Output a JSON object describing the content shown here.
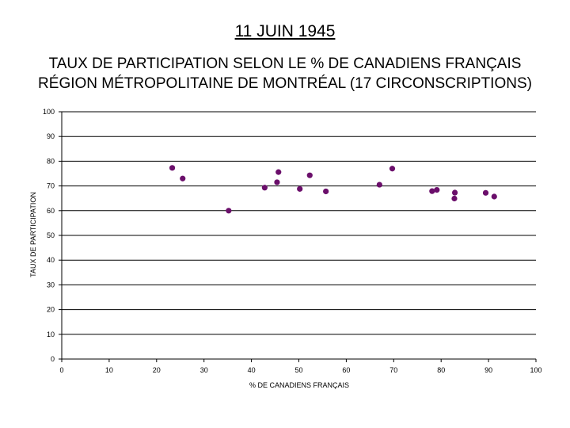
{
  "header": {
    "title": "11 JUIN 1945",
    "subtitle_line1": "TAUX DE PARTICIPATION SELON LE % DE CANADIENS FRANÇAIS",
    "subtitle_line2": "RÉGION MÉTROPOLITAINE DE MONTRÉAL (17 CIRCONSCRIPTIONS)"
  },
  "chart_data": {
    "type": "scatter",
    "title": "11 JUIN 1945",
    "subtitle": "TAUX DE PARTICIPATION SELON LE % DE CANADIENS FRANÇAIS RÉGION MÉTROPOLITAINE DE MONTRÉAL (17 CIRCONSCRIPTIONS)",
    "xlabel": "% DE CANADIENS FRANÇAIS",
    "ylabel": "TAUX DE PARTICIPATION",
    "xlim": [
      0,
      100
    ],
    "ylim": [
      0,
      100
    ],
    "x_ticks": [
      0,
      10,
      20,
      30,
      40,
      50,
      60,
      70,
      80,
      90,
      100
    ],
    "y_ticks": [
      0,
      10,
      20,
      30,
      40,
      50,
      60,
      70,
      80,
      90,
      100
    ],
    "grid": "horizontal",
    "marker_color": "#6B0F6B",
    "points": [
      {
        "x": 23.3,
        "y": 77.3
      },
      {
        "x": 25.5,
        "y": 73.0
      },
      {
        "x": 35.2,
        "y": 60.0
      },
      {
        "x": 42.8,
        "y": 69.3
      },
      {
        "x": 45.4,
        "y": 71.5
      },
      {
        "x": 45.7,
        "y": 75.6
      },
      {
        "x": 50.2,
        "y": 68.8
      },
      {
        "x": 52.3,
        "y": 74.3
      },
      {
        "x": 55.7,
        "y": 67.8
      },
      {
        "x": 67.0,
        "y": 70.5
      },
      {
        "x": 69.7,
        "y": 77.0
      },
      {
        "x": 78.1,
        "y": 67.9
      },
      {
        "x": 79.1,
        "y": 68.4
      },
      {
        "x": 82.8,
        "y": 64.9
      },
      {
        "x": 82.9,
        "y": 67.3
      },
      {
        "x": 89.4,
        "y": 67.2
      },
      {
        "x": 91.2,
        "y": 65.7
      }
    ]
  }
}
